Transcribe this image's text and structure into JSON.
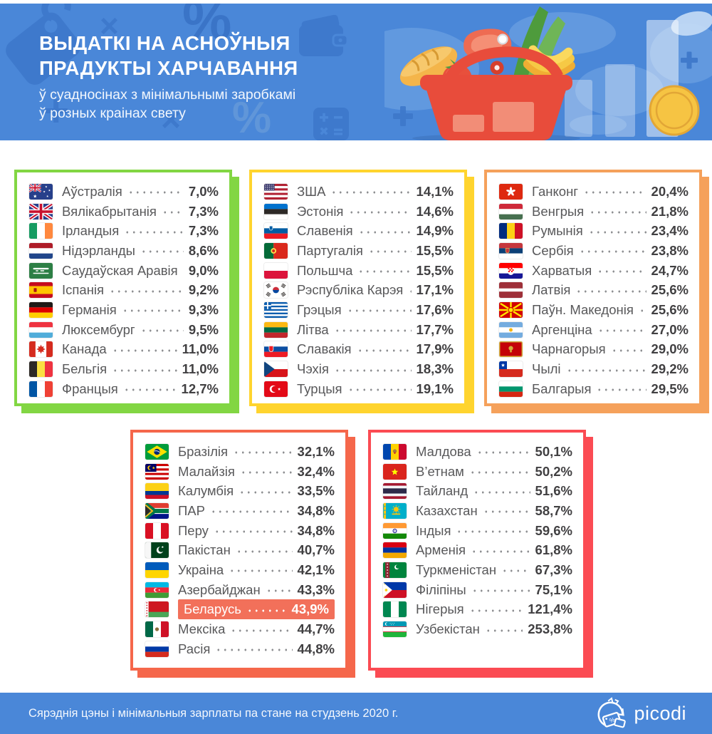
{
  "header": {
    "title_line1": "ВЫДАТКІ НА АСНОЎНЫЯ",
    "title_line2": "ПРАДУКТЫ ХАРЧАВАННЯ",
    "subtitle_line1": "ў суадносінах з мінімальнымі заробкамі",
    "subtitle_line2": "ў розных краінах свету"
  },
  "footer": {
    "note": "Сярэднія цэны і мінімальныя зарплаты па стане на студзень 2020 г.",
    "brand": "picodi"
  },
  "colors": {
    "background_blue": "#4a87d8",
    "deco_blue_dark": "#3e79cc",
    "deco_blue_light": "#6096d9",
    "group_green": "#82d643",
    "group_yellow": "#ffd42e",
    "group_orange": "#f5a15b",
    "group_coral": "#f5674b",
    "group_red": "#fb4b53",
    "highlight_row": "#f2705a",
    "name_text": "#58585a",
    "value_text": "#414042"
  },
  "icons": {
    "header_decorations": [
      "price-tag-icon",
      "multiply-icon",
      "percent-icon",
      "wallet-icon",
      "plus-icon",
      "calculator-icon"
    ],
    "hero": [
      "world-map",
      "grocery-basket-illustration",
      "bar-chart-illustration",
      "coin-icon"
    ],
    "footer": [
      "picodi-logo-icon"
    ],
    "flags_note": "flag-<code>-icon per country row"
  },
  "chart_data": {
    "type": "table",
    "title": "Выдаткі на асноўныя прадукты харчавання ў суадносінах з мінімальнымі заробкамі ў розных краінах свету",
    "unit": "%",
    "highlighted_country": "Беларусь",
    "groups": [
      {
        "accent": "#82d643",
        "rows": [
          {
            "flag": "au",
            "name": "Аўстралія",
            "pct": 7.0,
            "label": "7,0%"
          },
          {
            "flag": "gb",
            "name": "Вялікабрытанія",
            "pct": 7.3,
            "label": "7,3%"
          },
          {
            "flag": "ie",
            "name": "Ірландыя",
            "pct": 7.3,
            "label": "7,3%"
          },
          {
            "flag": "nl",
            "name": "Нідэрланды",
            "pct": 8.6,
            "label": "8,6%"
          },
          {
            "flag": "sa",
            "name": "Саудаўская Аравія",
            "pct": 9.0,
            "label": "9,0%"
          },
          {
            "flag": "es",
            "name": "Іспанія",
            "pct": 9.2,
            "label": "9,2%"
          },
          {
            "flag": "de",
            "name": "Германія",
            "pct": 9.3,
            "label": "9,3%"
          },
          {
            "flag": "lu",
            "name": "Люксембург",
            "pct": 9.5,
            "label": "9,5%"
          },
          {
            "flag": "ca",
            "name": "Канада",
            "pct": 11.0,
            "label": "11,0%"
          },
          {
            "flag": "be",
            "name": "Бельгія",
            "pct": 11.0,
            "label": "11,0%"
          },
          {
            "flag": "fr",
            "name": "Францыя",
            "pct": 12.7,
            "label": "12,7%"
          }
        ]
      },
      {
        "accent": "#ffd42e",
        "rows": [
          {
            "flag": "us",
            "name": "ЗША",
            "pct": 14.1,
            "label": "14,1%"
          },
          {
            "flag": "ee",
            "name": "Эстонія",
            "pct": 14.6,
            "label": "14,6%"
          },
          {
            "flag": "si",
            "name": "Славенія",
            "pct": 14.9,
            "label": "14,9%"
          },
          {
            "flag": "pt",
            "name": "Партугалія",
            "pct": 15.5,
            "label": "15,5%"
          },
          {
            "flag": "pl",
            "name": "Польшча",
            "pct": 15.5,
            "label": "15,5%"
          },
          {
            "flag": "kr",
            "name": "Рэспубліка Карэя",
            "pct": 17.1,
            "label": "17,1%"
          },
          {
            "flag": "gr",
            "name": "Грэцыя",
            "pct": 17.6,
            "label": "17,6%"
          },
          {
            "flag": "lt",
            "name": "Літва",
            "pct": 17.7,
            "label": "17,7%"
          },
          {
            "flag": "sk",
            "name": "Славакія",
            "pct": 17.9,
            "label": "17,9%"
          },
          {
            "flag": "cz",
            "name": "Чэхія",
            "pct": 18.3,
            "label": "18,3%"
          },
          {
            "flag": "tr",
            "name": "Турцыя",
            "pct": 19.1,
            "label": "19,1%"
          }
        ]
      },
      {
        "accent": "#f5a15b",
        "rows": [
          {
            "flag": "hk",
            "name": "Ганконг",
            "pct": 20.4,
            "label": "20,4%"
          },
          {
            "flag": "hu",
            "name": "Венгрыя",
            "pct": 21.8,
            "label": "21,8%"
          },
          {
            "flag": "ro",
            "name": "Румынія",
            "pct": 23.4,
            "label": "23,4%"
          },
          {
            "flag": "rs",
            "name": "Сербія",
            "pct": 23.8,
            "label": "23,8%"
          },
          {
            "flag": "hr",
            "name": "Харватыя",
            "pct": 24.7,
            "label": "24,7%"
          },
          {
            "flag": "lv",
            "name": "Латвія",
            "pct": 25.6,
            "label": "25,6%"
          },
          {
            "flag": "mk",
            "name": "Паўн. Македонія",
            "pct": 25.6,
            "label": "25,6%"
          },
          {
            "flag": "ar",
            "name": "Аргенціна",
            "pct": 27.0,
            "label": "27,0%"
          },
          {
            "flag": "me",
            "name": "Чарнагорыя",
            "pct": 29.0,
            "label": "29,0%"
          },
          {
            "flag": "cl",
            "name": "Чылі",
            "pct": 29.2,
            "label": "29,2%"
          },
          {
            "flag": "bg",
            "name": "Балгарыя",
            "pct": 29.5,
            "label": "29,5%"
          }
        ]
      },
      {
        "accent": "#f5674b",
        "rows": [
          {
            "flag": "br",
            "name": "Бразілія",
            "pct": 32.1,
            "label": "32,1%"
          },
          {
            "flag": "my",
            "name": "Малайзія",
            "pct": 32.4,
            "label": "32,4%"
          },
          {
            "flag": "co",
            "name": "Калумбія",
            "pct": 33.5,
            "label": "33,5%"
          },
          {
            "flag": "za",
            "name": "ПАР",
            "pct": 34.8,
            "label": "34,8%"
          },
          {
            "flag": "pe",
            "name": "Перу",
            "pct": 34.8,
            "label": "34,8%"
          },
          {
            "flag": "pk",
            "name": "Пакістан",
            "pct": 40.7,
            "label": "40,7%"
          },
          {
            "flag": "ua",
            "name": "Украіна",
            "pct": 42.1,
            "label": "42,1%"
          },
          {
            "flag": "az",
            "name": "Азербайджан",
            "pct": 43.3,
            "label": "43,3%"
          },
          {
            "flag": "by",
            "name": "Беларусь",
            "pct": 43.9,
            "label": "43,9%",
            "highlight": true
          },
          {
            "flag": "mx",
            "name": "Мексіка",
            "pct": 44.7,
            "label": "44,7%"
          },
          {
            "flag": "ru",
            "name": "Расія",
            "pct": 44.8,
            "label": "44,8%"
          }
        ]
      },
      {
        "accent": "#fb4b53",
        "rows": [
          {
            "flag": "md",
            "name": "Малдова",
            "pct": 50.1,
            "label": "50,1%"
          },
          {
            "flag": "vn",
            "name": "В’етнам",
            "pct": 50.2,
            "label": "50,2%"
          },
          {
            "flag": "th",
            "name": "Тайланд",
            "pct": 51.6,
            "label": "51,6%"
          },
          {
            "flag": "kz",
            "name": "Казахстан",
            "pct": 58.7,
            "label": "58,7%"
          },
          {
            "flag": "in",
            "name": "Індыя",
            "pct": 59.6,
            "label": "59,6%"
          },
          {
            "flag": "am",
            "name": "Арменія",
            "pct": 61.8,
            "label": "61,8%"
          },
          {
            "flag": "tm",
            "name": "Туркменістан",
            "pct": 67.3,
            "label": "67,3%"
          },
          {
            "flag": "ph",
            "name": "Філіпіны",
            "pct": 75.1,
            "label": "75,1%"
          },
          {
            "flag": "ng",
            "name": "Нігерыя",
            "pct": 121.4,
            "label": "121,4%"
          },
          {
            "flag": "uz",
            "name": "Узбекістан",
            "pct": 253.8,
            "label": "253,8%"
          }
        ]
      }
    ]
  }
}
